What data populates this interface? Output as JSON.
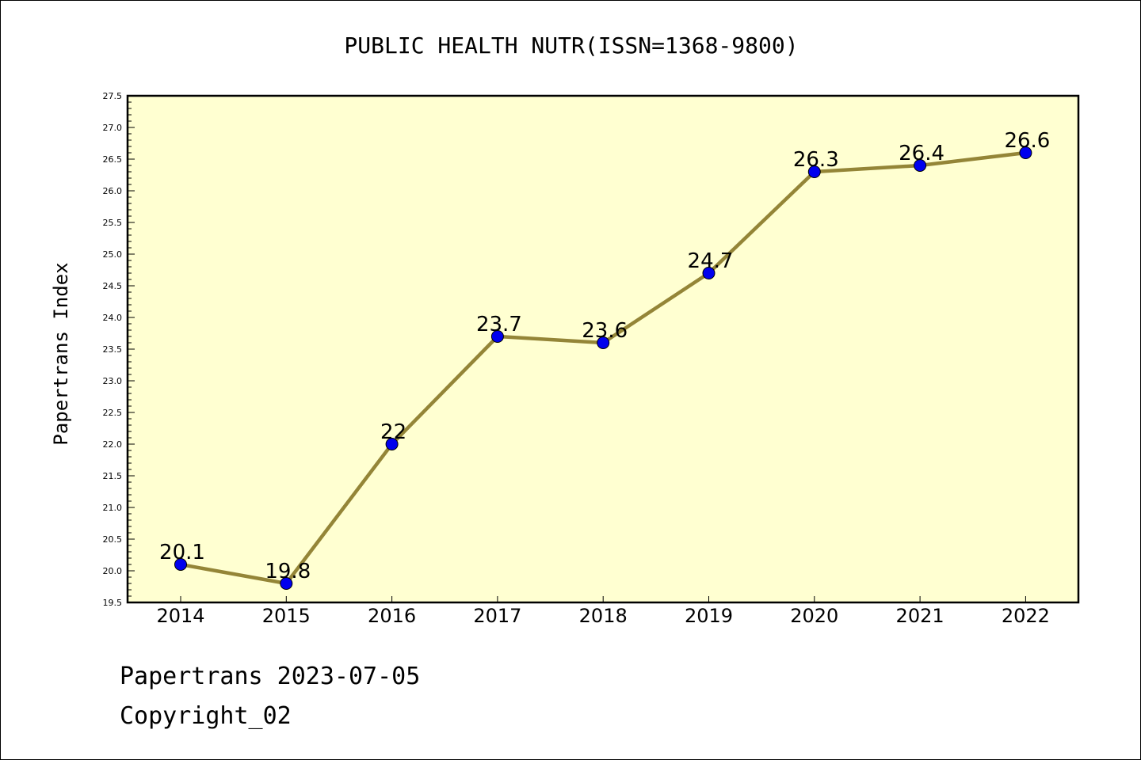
{
  "chart_data": {
    "type": "line",
    "title": "PUBLIC HEALTH NUTR(ISSN=1368-9800)",
    "xlabel": "",
    "ylabel": "Papertrans Index",
    "categories": [
      "2014",
      "2015",
      "2016",
      "2017",
      "2018",
      "2019",
      "2020",
      "2021",
      "2022"
    ],
    "series": [
      {
        "values": [
          20.1,
          19.8,
          22,
          23.7,
          23.6,
          24.7,
          26.3,
          26.4,
          26.6
        ],
        "labels": [
          "20.1",
          "19.8",
          "22",
          "23.7",
          "23.6",
          "24.7",
          "26.3",
          "26.4",
          "26.6"
        ]
      }
    ],
    "ylim": [
      19.5,
      27.5
    ],
    "yticks": [
      "19.5",
      "20.0",
      "20.5",
      "21.0",
      "21.5",
      "22.0",
      "22.5",
      "23.0",
      "23.5",
      "24.0",
      "24.5",
      "25.0",
      "25.5",
      "26.0",
      "26.5",
      "27.0",
      "27.5"
    ],
    "grid": false,
    "legend": "none",
    "colors": {
      "plot_background": "#ffffd1",
      "line": "#948537",
      "marker": "#0000ee",
      "axis": "#000000"
    }
  },
  "footer": {
    "date_line": "Papertrans 2023-07-05",
    "copyright": "Copyright_02"
  }
}
